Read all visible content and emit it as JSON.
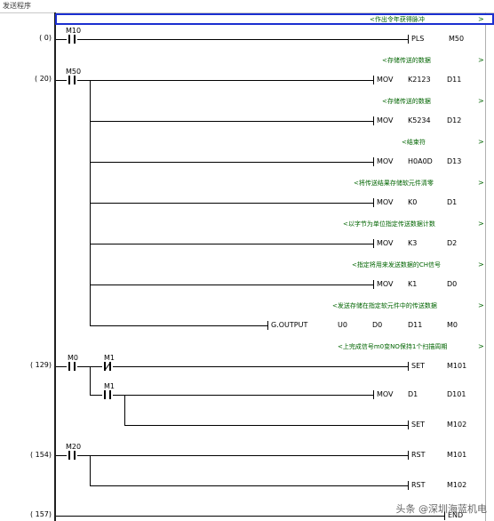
{
  "title": "发送程序",
  "watermark": "头条 @深圳海蓝机电",
  "comments": [
    "<作出令年获得脉冲",
    "<存储传送的数据",
    "<存储传送的数据",
    "<结束符",
    "<将传送结果存储软元件清零",
    "<以字节为单位指定传送数据计数",
    "<指定将用来发送数据的CH信号",
    "<发送存储在指定软元件中的传送数据",
    "<上完成信号m0变NO保持1个扫描周期"
  ],
  "steps": [
    "( 0)",
    "( 20)",
    "( 129)",
    "( 154)",
    "( 157)"
  ],
  "contacts": {
    "m10": "M10",
    "m50": "M50",
    "m0": "M0",
    "m1a": "M1",
    "m1b": "M1",
    "m20": "M20"
  },
  "rows": [
    {
      "op": "PLS",
      "a1": "M50",
      "a2": ""
    },
    {
      "op": "MOV",
      "a1": "K2123",
      "a2": "D11"
    },
    {
      "op": "MOV",
      "a1": "K5234",
      "a2": "D12"
    },
    {
      "op": "MOV",
      "a1": "H0A0D",
      "a2": "D13"
    },
    {
      "op": "MOV",
      "a1": "K0",
      "a2": "D1"
    },
    {
      "op": "MOV",
      "a1": "K3",
      "a2": "D2"
    },
    {
      "op": "MOV",
      "a1": "K1",
      "a2": "D0"
    },
    {
      "op": "G.OUTPUT",
      "a1": "U0",
      "a2": "D0",
      "a3": "D11",
      "a4": "M0"
    },
    {
      "op": "SET",
      "a1": "M101"
    },
    {
      "op": "MOV",
      "a1": "D1",
      "a2": "D101"
    },
    {
      "op": "SET",
      "a1": "M102"
    },
    {
      "op": "RST",
      "a1": "M101"
    },
    {
      "op": "RST",
      "a1": "M102"
    },
    {
      "op": "END"
    }
  ],
  "arrow": ">"
}
